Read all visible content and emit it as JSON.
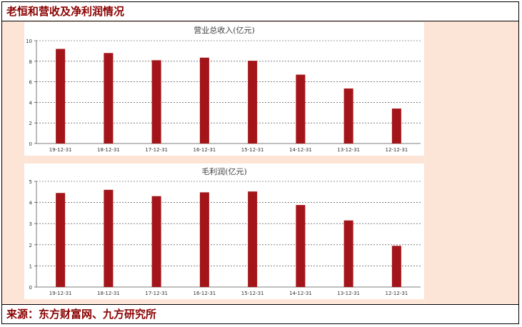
{
  "header": {
    "title": "老恒和营收及净利润情况"
  },
  "footer": {
    "source": "来源：东方财富网、九方研究所"
  },
  "colors": {
    "bar": "#a31519",
    "panel_bg": "#fce4d6",
    "title_text": "#8b0000"
  },
  "chart_data": [
    {
      "type": "bar",
      "title": "营业总收入(亿元)",
      "categories": [
        "19-12-31",
        "18-12-31",
        "17-12-31",
        "16-12-31",
        "15-12-31",
        "14-12-31",
        "13-12-31",
        "12-12-31"
      ],
      "values": [
        9.2,
        8.8,
        8.1,
        8.35,
        8.05,
        6.7,
        5.35,
        3.4
      ],
      "ylim": [
        0,
        10
      ],
      "yticks": [
        "0",
        "2",
        "4",
        "6",
        "8",
        "10"
      ],
      "grid": true
    },
    {
      "type": "bar",
      "title": "毛利润(亿元)",
      "categories": [
        "19-12-31",
        "18-12-31",
        "17-12-31",
        "16-12-31",
        "15-12-31",
        "14-12-31",
        "13-12-31",
        "12-12-31"
      ],
      "values": [
        4.45,
        4.6,
        4.3,
        4.48,
        4.52,
        3.88,
        3.15,
        1.95
      ],
      "ylim": [
        0,
        5
      ],
      "yticks": [
        "0",
        "1",
        "2",
        "3",
        "4",
        "5"
      ],
      "grid": true
    }
  ]
}
